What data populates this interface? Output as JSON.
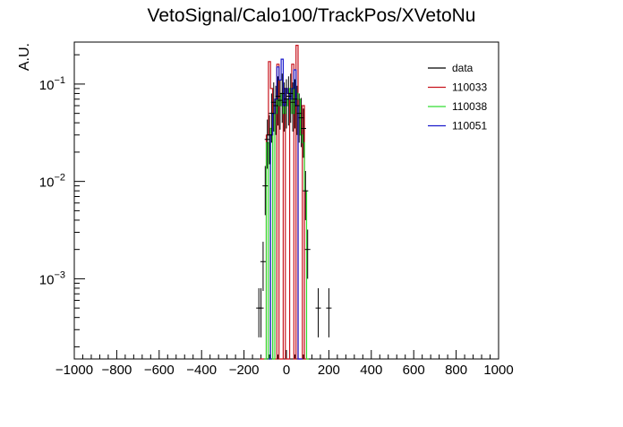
{
  "chart_data": {
    "type": "line",
    "title": "VetoSignal/Calo100/TrackPos/XVetoNu",
    "ylabel": "A.U.",
    "xlabel": "",
    "xlim": [
      -1000,
      1000
    ],
    "ylim": [
      0.00015,
      0.27
    ],
    "yscale": "log",
    "x_ticks": [
      "−1000",
      "−800",
      "−600",
      "−400",
      "−200",
      "0",
      "200",
      "400",
      "600",
      "800",
      "1000"
    ],
    "y_ticks": [
      {
        "value": 0.001,
        "base": "10",
        "exp": "−3"
      },
      {
        "value": 0.01,
        "base": "10",
        "exp": "−2"
      },
      {
        "value": 0.1,
        "base": "10",
        "exp": "−1"
      }
    ],
    "legend_position": "top-right",
    "series": [
      {
        "name": "110033",
        "color": "#c8141e",
        "style": "step",
        "points": [
          [
            -120,
            0.00015
          ],
          [
            -100,
            0.00015
          ],
          [
            -90,
            0.03
          ],
          [
            -80,
            0.17
          ],
          [
            -70,
            0.09
          ],
          [
            -60,
            0.00015
          ],
          [
            -50,
            0.00015
          ],
          [
            -40,
            0.16
          ],
          [
            -30,
            0.00015
          ],
          [
            -20,
            0.00015
          ],
          [
            -10,
            0.09
          ],
          [
            0,
            0.00015
          ],
          [
            10,
            0.00015
          ],
          [
            20,
            0.08
          ],
          [
            30,
            0.16
          ],
          [
            40,
            0.00015
          ],
          [
            50,
            0.25
          ],
          [
            60,
            0.00015
          ],
          [
            70,
            0.00015
          ],
          [
            80,
            0.06
          ],
          [
            90,
            0.00015
          ],
          [
            100,
            0.00015
          ]
        ]
      },
      {
        "name": "110038",
        "color": "#33dd33",
        "style": "step",
        "points": [
          [
            -100,
            0.00015
          ],
          [
            -90,
            0.025
          ],
          [
            -80,
            0.00015
          ],
          [
            -70,
            0.035
          ],
          [
            -60,
            0.00015
          ],
          [
            -50,
            0.05
          ],
          [
            -40,
            0.07
          ],
          [
            -30,
            0.06
          ],
          [
            -20,
            0.08
          ],
          [
            -10,
            0.05
          ],
          [
            0,
            0.06
          ],
          [
            10,
            0.07
          ],
          [
            20,
            0.09
          ],
          [
            30,
            0.05
          ],
          [
            40,
            0.11
          ],
          [
            50,
            0.08
          ],
          [
            60,
            0.07
          ],
          [
            70,
            0.03
          ],
          [
            80,
            0.025
          ],
          [
            90,
            0.008
          ],
          [
            100,
            0.00015
          ]
        ]
      },
      {
        "name": "110051",
        "color": "#1a1acc",
        "style": "step",
        "points": [
          [
            -80,
            0.00015
          ],
          [
            -70,
            0.03
          ],
          [
            -60,
            0.05
          ],
          [
            -50,
            0.07
          ],
          [
            -40,
            0.15
          ],
          [
            -30,
            0.11
          ],
          [
            -20,
            0.18
          ],
          [
            -10,
            0.06
          ],
          [
            0,
            0.09
          ],
          [
            10,
            0.08
          ],
          [
            20,
            0.07
          ],
          [
            30,
            0.09
          ],
          [
            40,
            0.14
          ],
          [
            50,
            0.06
          ],
          [
            60,
            0.00015
          ],
          [
            70,
            0.00015
          ]
        ]
      },
      {
        "name": "data",
        "color": "#000000",
        "style": "errorbar",
        "points": [
          [
            -130,
            0.0005
          ],
          [
            -120,
            0.0005
          ],
          [
            -110,
            0.0015
          ],
          [
            -100,
            0.009
          ],
          [
            -90,
            0.027
          ],
          [
            -80,
            0.03
          ],
          [
            -70,
            0.05
          ],
          [
            -60,
            0.065
          ],
          [
            -50,
            0.06
          ],
          [
            -40,
            0.075
          ],
          [
            -30,
            0.068
          ],
          [
            -20,
            0.08
          ],
          [
            -10,
            0.065
          ],
          [
            0,
            0.07
          ],
          [
            10,
            0.075
          ],
          [
            20,
            0.08
          ],
          [
            30,
            0.065
          ],
          [
            40,
            0.07
          ],
          [
            50,
            0.06
          ],
          [
            60,
            0.05
          ],
          [
            70,
            0.045
          ],
          [
            80,
            0.035
          ],
          [
            90,
            0.008
          ],
          [
            100,
            0.002
          ],
          [
            150,
            0.0005
          ],
          [
            200,
            0.0005
          ]
        ]
      }
    ],
    "legend": [
      {
        "label": "data",
        "color": "#000000"
      },
      {
        "label": "110033",
        "color": "#c8141e"
      },
      {
        "label": "110038",
        "color": "#33dd33"
      },
      {
        "label": "110051",
        "color": "#1a1acc"
      }
    ]
  }
}
